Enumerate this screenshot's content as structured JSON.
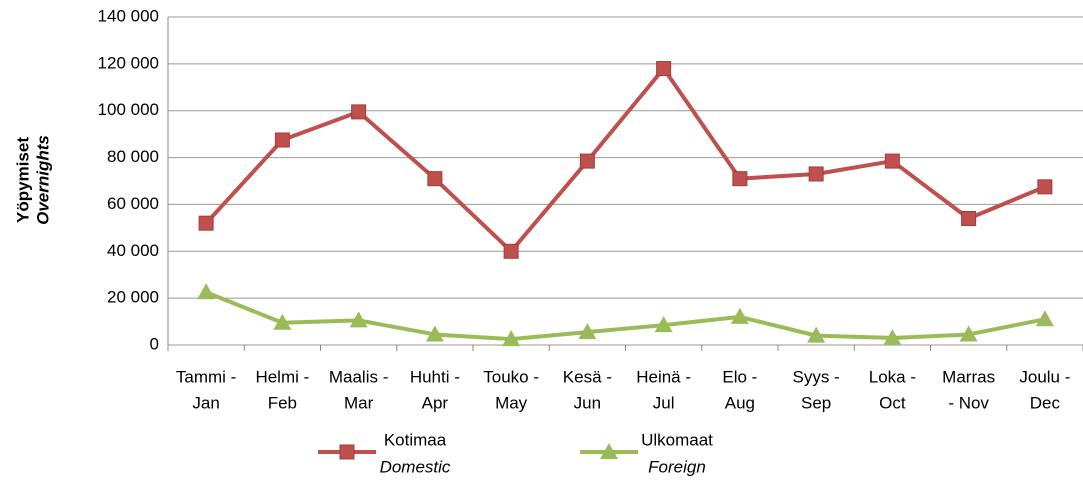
{
  "chart_data": {
    "type": "line",
    "ylabel": [
      "Yöpymiset",
      "Overnights"
    ],
    "categories": [
      [
        "Tammi -",
        "Jan"
      ],
      [
        "Helmi -",
        "Feb"
      ],
      [
        "Maalis -",
        "Mar"
      ],
      [
        "Huhti -",
        "Apr"
      ],
      [
        "Touko -",
        "May"
      ],
      [
        "Kesä -",
        "Jun"
      ],
      [
        "Heinä -",
        "Jul"
      ],
      [
        "Elo -",
        "Aug"
      ],
      [
        "Syys -",
        "Sep"
      ],
      [
        "Loka -",
        "Oct"
      ],
      [
        "Marras",
        "- Nov"
      ],
      [
        "Joulu -",
        "Dec"
      ]
    ],
    "series": [
      {
        "name": "Kotimaa",
        "subname": "Domestic",
        "color": "#c0504d",
        "marker": "square",
        "values": [
          52000,
          87500,
          99500,
          71000,
          40000,
          78500,
          118000,
          71000,
          73000,
          78500,
          54000,
          67500
        ]
      },
      {
        "name": "Ulkomaat",
        "subname": "Foreign",
        "color": "#9bbb59",
        "marker": "triangle",
        "values": [
          22500,
          9500,
          10500,
          4500,
          2500,
          5500,
          8500,
          12000,
          4000,
          3000,
          4500,
          11000
        ]
      }
    ],
    "ylim": [
      0,
      140000
    ],
    "yticks": [
      0,
      {
        "value": 20000,
        "label": "20 000"
      },
      {
        "value": 40000,
        "label": "40 000"
      },
      {
        "value": 60000,
        "label": "60 000"
      },
      {
        "value": 80000,
        "label": "80 000"
      },
      {
        "value": 100000,
        "label": "100 000"
      },
      {
        "value": 120000,
        "label": "120 000"
      },
      {
        "value": 140000,
        "label": "140 000"
      }
    ],
    "grid": true,
    "legend": "bottom"
  }
}
